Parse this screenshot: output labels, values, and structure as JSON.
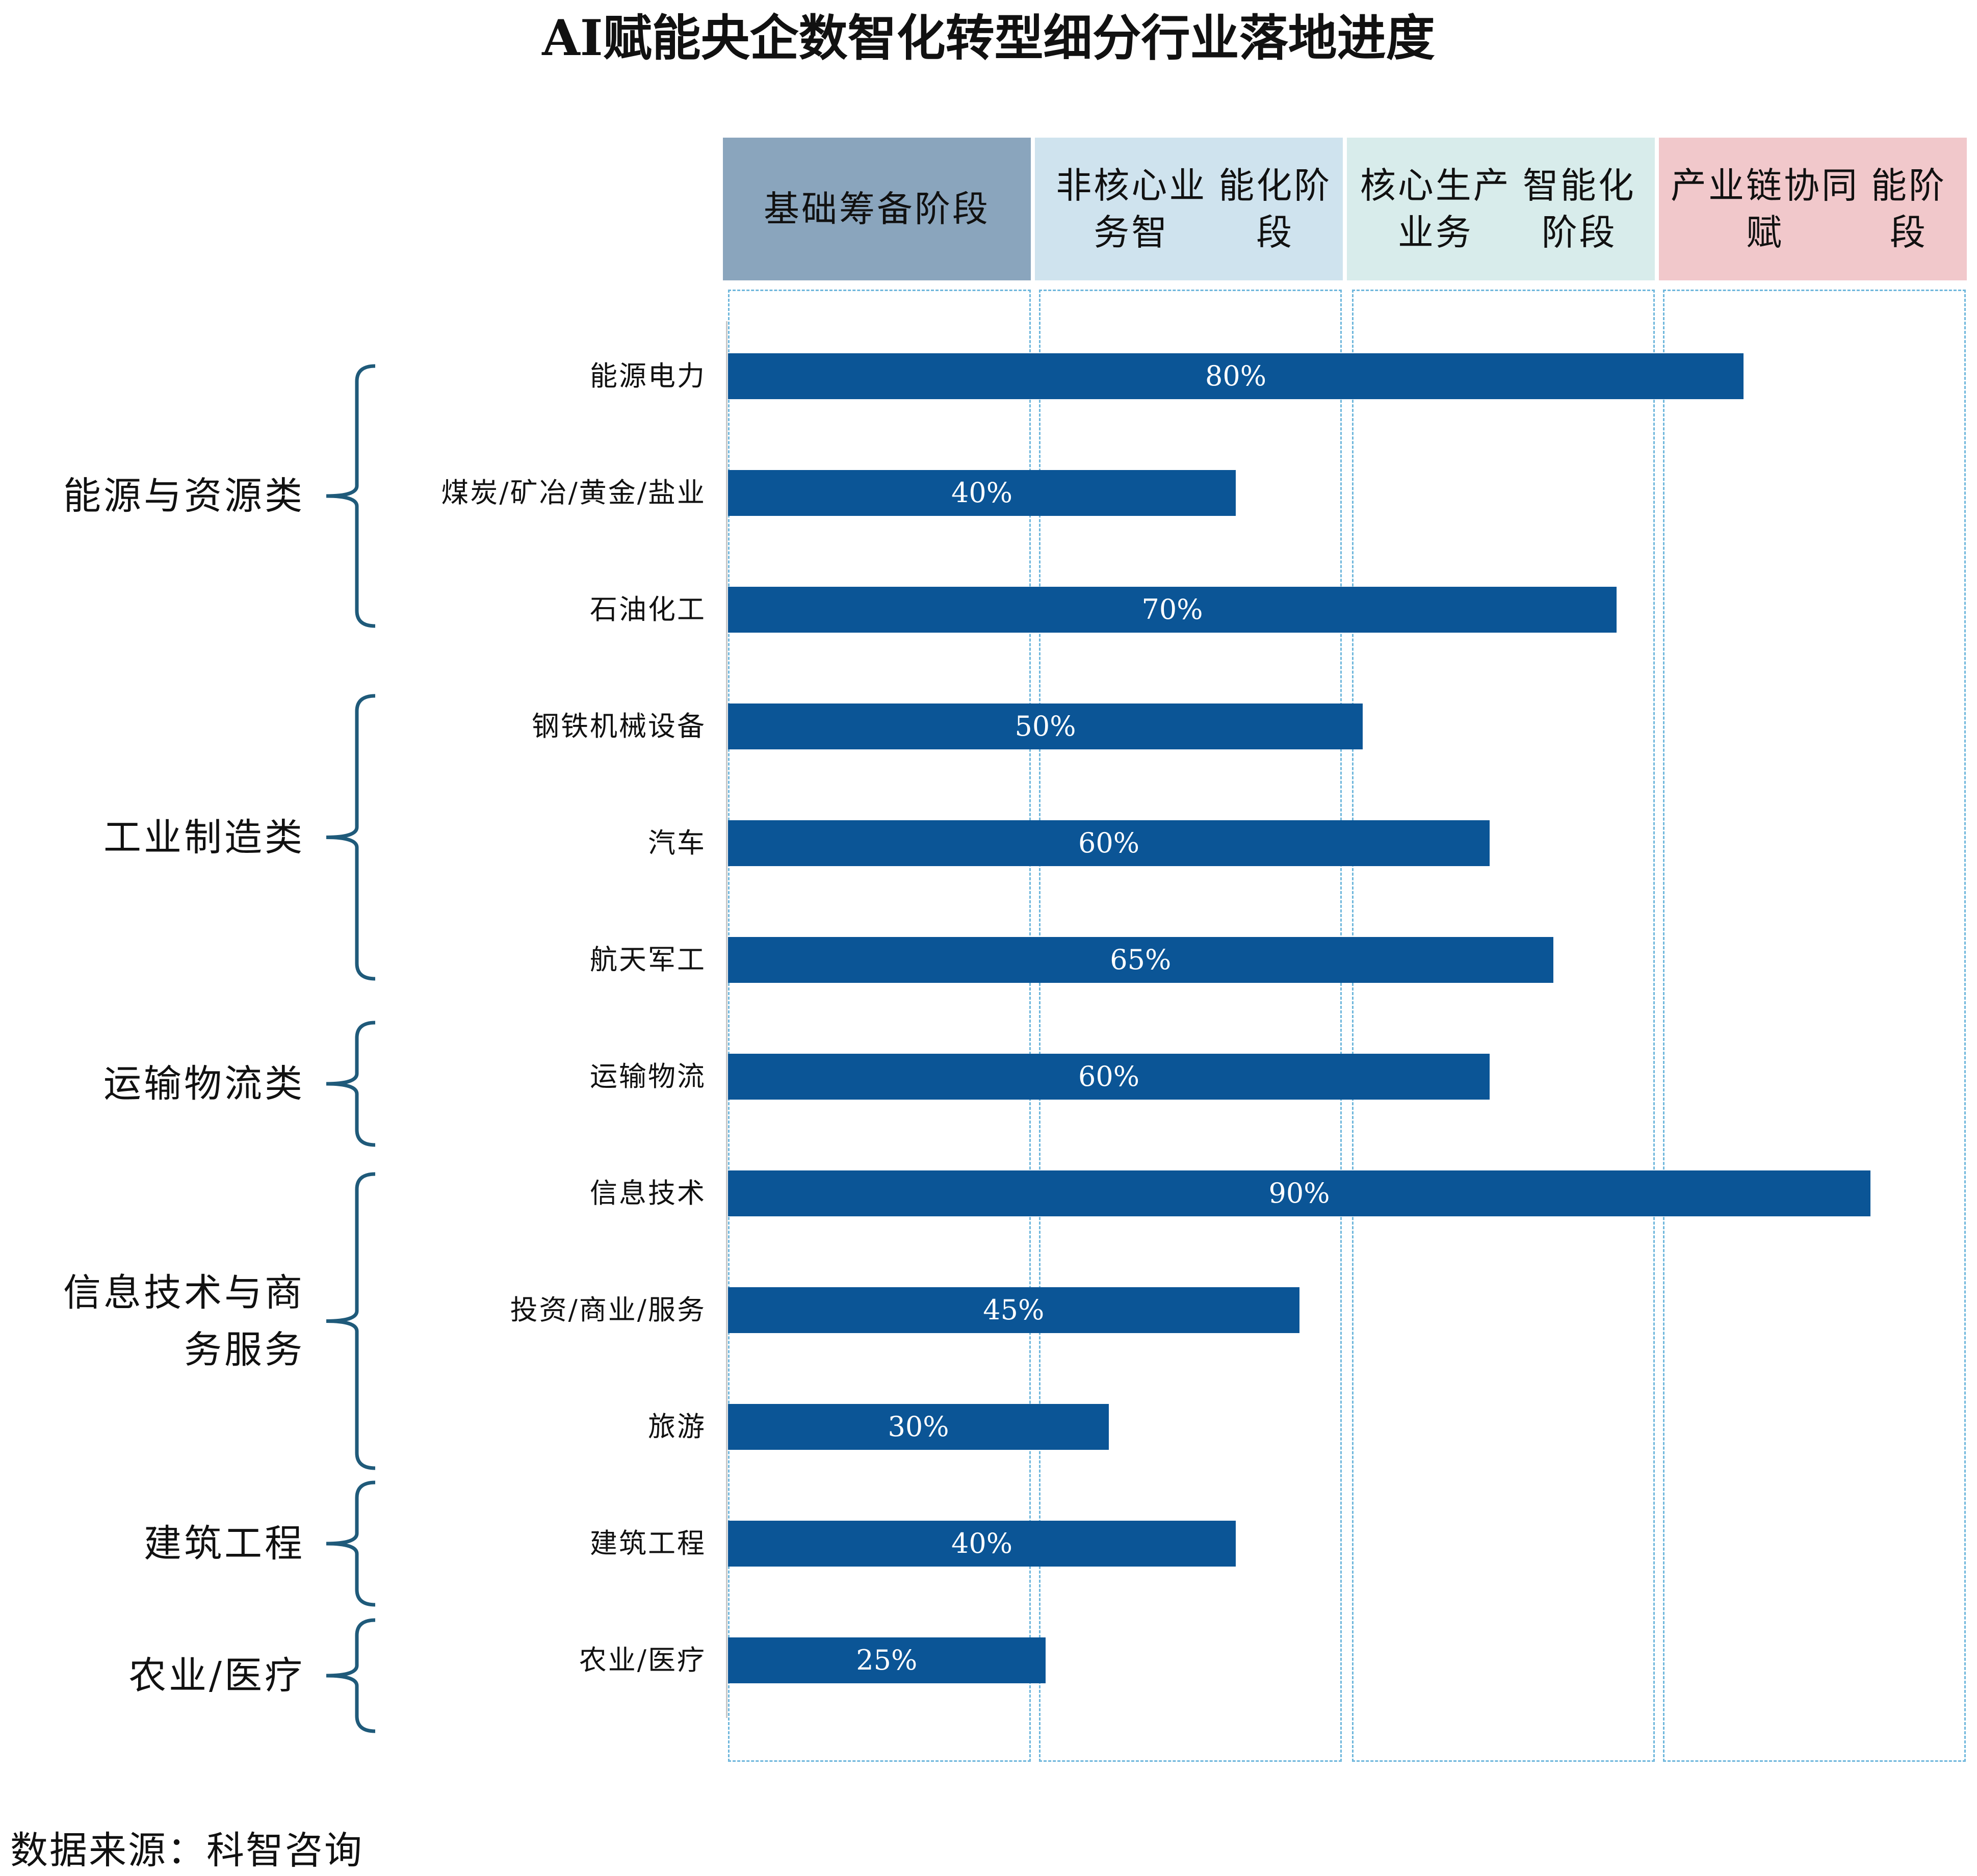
{
  "title": "AI赋能央企数智化转型细分行业落地进度",
  "stages": [
    {
      "lines": [
        "基础筹备阶段"
      ],
      "bg": "#8aa5bd"
    },
    {
      "lines": [
        "非核心业务智",
        "能化阶段"
      ],
      "bg": "#cfe3ee"
    },
    {
      "lines": [
        "核心生产业务",
        "智能化阶段"
      ],
      "bg": "#d8eceb"
    },
    {
      "lines": [
        "产业链协同赋",
        "能阶段"
      ],
      "bg": "#f1c8cb"
    }
  ],
  "groups": [
    {
      "lines": [
        "能源与资源类"
      ]
    },
    {
      "lines": [
        "工业制造类"
      ]
    },
    {
      "lines": [
        "运输物流类"
      ]
    },
    {
      "lines": [
        "信息技术与商",
        "务服务"
      ]
    },
    {
      "lines": [
        "建筑工程"
      ]
    },
    {
      "lines": [
        "农业/医疗"
      ]
    }
  ],
  "source": "数据来源：科智咨询",
  "colors": {
    "bar": "#0b5596",
    "brace": "#1f5a7a",
    "dashed": "#6fb7dc"
  },
  "chart_data": {
    "type": "bar",
    "orientation": "horizontal",
    "title": "AI赋能央企数智化转型细分行业落地进度",
    "categories": [
      "能源电力",
      "煤炭/矿冶/黄金/盐业",
      "石油化工",
      "钢铁机械设备",
      "汽车",
      "航天军工",
      "运输物流",
      "信息技术",
      "投资/商业/服务",
      "旅游",
      "建筑工程",
      "农业/医疗"
    ],
    "values": [
      80,
      40,
      70,
      50,
      60,
      65,
      60,
      90,
      45,
      30,
      40,
      25
    ],
    "value_labels": [
      "80%",
      "40%",
      "70%",
      "50%",
      "60%",
      "65%",
      "60%",
      "90%",
      "45%",
      "30%",
      "40%",
      "25%"
    ],
    "xlim": [
      0,
      100
    ],
    "unit": "%"
  }
}
